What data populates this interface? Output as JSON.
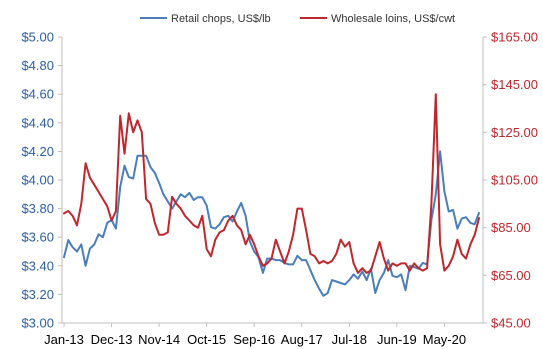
{
  "chart_data": {
    "type": "line",
    "legend_position": "top",
    "grid": false,
    "x_tick_labels": [
      "Jan-13",
      "Dec-13",
      "Nov-14",
      "Oct-15",
      "Sep-16",
      "Aug-17",
      "Jul-18",
      "Jun-19",
      "May-20"
    ],
    "x_tick_index": [
      0,
      11,
      22,
      33,
      44,
      55,
      66,
      77,
      88
    ],
    "y_left": {
      "ylim": [
        3.0,
        5.0
      ],
      "ticks": [
        3.0,
        3.2,
        3.4,
        3.6,
        3.8,
        4.0,
        4.2,
        4.4,
        4.6,
        4.8,
        5.0
      ],
      "tick_labels": [
        "$3.00",
        "$3.20",
        "$3.40",
        "$3.60",
        "$3.80",
        "$4.00",
        "$4.20",
        "$4.40",
        "$4.60",
        "$4.80",
        "$5.00"
      ],
      "color": "#2E5E9E"
    },
    "y_right": {
      "ylim": [
        45,
        165
      ],
      "ticks": [
        45,
        65,
        85,
        105,
        125,
        145,
        165
      ],
      "tick_labels": [
        "$45.00",
        "$65.00",
        "$85.00",
        "$105.00",
        "$125.00",
        "$145.00",
        "$165.00"
      ],
      "color": "#C0272D"
    },
    "series": [
      {
        "name": "Retail chops, US$/lb",
        "axis": "left",
        "color": "#4A7EBB",
        "values": [
          3.46,
          3.58,
          3.53,
          3.5,
          3.55,
          3.4,
          3.52,
          3.55,
          3.62,
          3.6,
          3.7,
          3.72,
          3.66,
          3.95,
          4.1,
          4.02,
          4.01,
          4.17,
          4.17,
          4.17,
          4.09,
          4.05,
          3.98,
          3.9,
          3.85,
          3.8,
          3.85,
          3.9,
          3.88,
          3.91,
          3.86,
          3.88,
          3.88,
          3.82,
          3.67,
          3.66,
          3.69,
          3.74,
          3.75,
          3.71,
          3.78,
          3.84,
          3.75,
          3.57,
          3.5,
          3.46,
          3.35,
          3.45,
          3.45,
          3.44,
          3.44,
          3.42,
          3.41,
          3.41,
          3.47,
          3.44,
          3.44,
          3.37,
          3.3,
          3.24,
          3.19,
          3.21,
          3.3,
          3.29,
          3.28,
          3.27,
          3.3,
          3.34,
          3.31,
          3.36,
          3.3,
          3.38,
          3.21,
          3.3,
          3.35,
          3.44,
          3.33,
          3.32,
          3.34,
          3.23,
          3.4,
          3.39,
          3.38,
          3.42,
          3.41,
          3.72,
          3.9,
          4.2,
          3.92,
          3.78,
          3.79,
          3.66,
          3.73,
          3.74,
          3.7,
          3.69,
          3.77
        ]
      },
      {
        "name": "Wholesale loins, US$/cwt",
        "axis": "right",
        "color": "#C0272D",
        "values": [
          91,
          92,
          90,
          86,
          95,
          112,
          106,
          103,
          100,
          97,
          94,
          88,
          92,
          132,
          116,
          133,
          125,
          130,
          125,
          97,
          95,
          87,
          82,
          82,
          83,
          98,
          95,
          93,
          90,
          88,
          86,
          85,
          90,
          76,
          73,
          80,
          83,
          84,
          88,
          90,
          86,
          84,
          78,
          82,
          78,
          73,
          69,
          70,
          72,
          80,
          75,
          70,
          75,
          82,
          93,
          93,
          84,
          74,
          73,
          70,
          71,
          70,
          71,
          74,
          80,
          77,
          79,
          70,
          66,
          68,
          66,
          67,
          73,
          79,
          72,
          67,
          70,
          69,
          70,
          70,
          67,
          70,
          68,
          67,
          68,
          95,
          141,
          78,
          67,
          69,
          73,
          80,
          74,
          72,
          78,
          82,
          89
        ]
      }
    ]
  }
}
